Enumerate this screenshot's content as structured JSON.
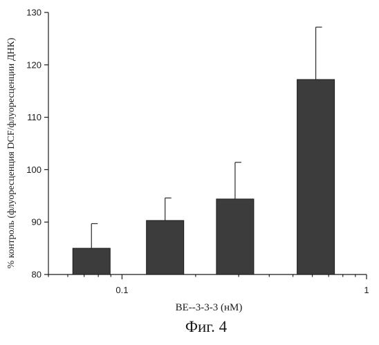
{
  "caption": "Фиг. 4",
  "chart_data": {
    "type": "bar",
    "xscale": "log",
    "xlim": [
      0.05,
      1
    ],
    "x_ticks": [
      {
        "value": 0.1,
        "label": "0.1"
      },
      {
        "value": 1,
        "label": "1"
      }
    ],
    "ylim": [
      80,
      130
    ],
    "y_ticks": [
      80,
      90,
      100,
      110,
      120,
      130
    ],
    "xlabel": "BE--3-3-3 (нМ)",
    "ylabel": "% контроль (флуоресценция DCF/флуоресценции ДНК)",
    "grid": false,
    "bars": [
      {
        "x": 0.075,
        "value": 85.0,
        "error": 4.7
      },
      {
        "x": 0.15,
        "value": 90.3,
        "error": 4.3
      },
      {
        "x": 0.29,
        "value": 94.4,
        "error": 7.0
      },
      {
        "x": 0.62,
        "value": 117.2,
        "error": 10.0
      }
    ],
    "colors": {
      "bar": "#3c3c3c",
      "axis": "#1a1a1a"
    }
  }
}
